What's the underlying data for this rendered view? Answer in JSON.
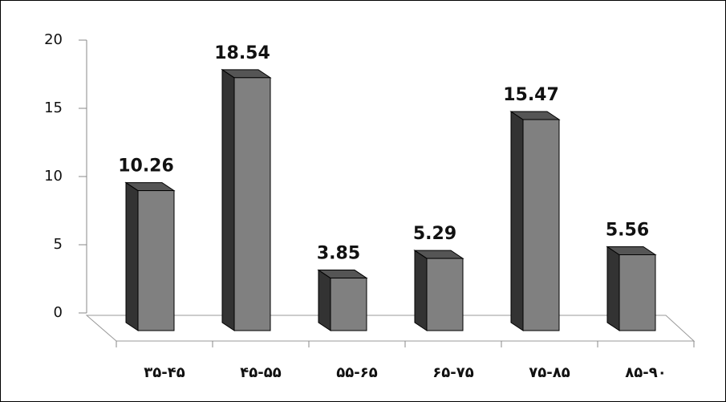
{
  "chart_data": {
    "type": "bar3d",
    "categories": [
      "۳۵-۴۵",
      "۴۵-۵۵",
      "۵۵-۶۵",
      "۶۵-۷۵",
      "۷۵-۸۵",
      "۸۵-۹۰"
    ],
    "values": [
      10.26,
      18.54,
      3.85,
      5.29,
      15.47,
      5.56
    ],
    "color": "#808080",
    "ylim": [
      0,
      20
    ],
    "yticks": [
      0,
      5,
      10,
      15,
      20
    ]
  }
}
